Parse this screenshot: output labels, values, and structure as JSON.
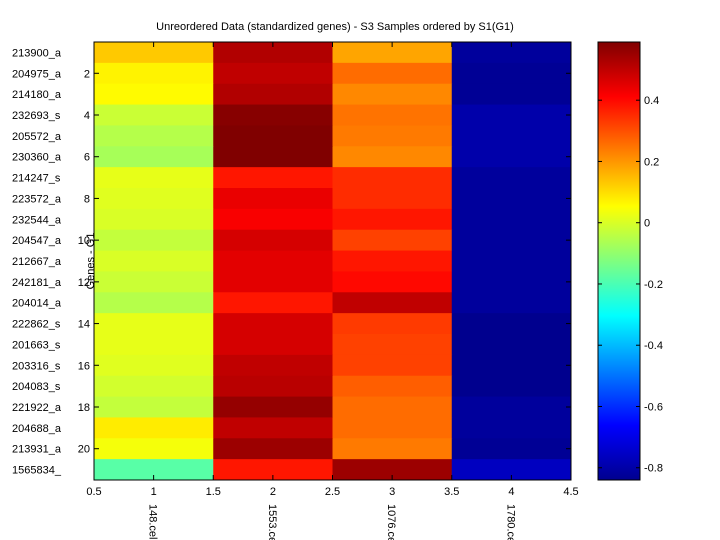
{
  "chart_data": {
    "type": "heatmap",
    "title": "Unreordered Data (standardized genes) - S3 Samples ordered by S1(G1)",
    "xlabel": "",
    "ylabel": "Genes - G1",
    "xlim": [
      0.5,
      4.5
    ],
    "x_ticks": [
      "0.5",
      "1",
      "1.5",
      "2",
      "2.5",
      "3",
      "3.5",
      "4",
      "4.5"
    ],
    "x_tick_values": [
      0.5,
      1,
      1.5,
      2,
      2.5,
      3,
      3.5,
      4,
      4.5
    ],
    "columns": [
      "148.cel",
      "1553.cel",
      "1076.cel",
      "1780.cel"
    ],
    "row_labels": [
      "213900_a",
      "204975_a",
      "214180_a",
      "232693_s",
      "205572_a",
      "230360_a",
      "214247_s",
      "223572_a",
      "232544_a",
      "204547_a",
      "212667_a",
      "242181_a",
      "204014_a",
      "222862_s",
      "201663_s",
      "203316_s",
      "204083_s",
      "221922_a",
      "204688_a",
      "213931_a",
      "1565834_"
    ],
    "y_ticks": [
      "2",
      "4",
      "6",
      "8",
      "10",
      "12",
      "14",
      "16",
      "18",
      "20"
    ],
    "y_tick_values": [
      2,
      4,
      6,
      8,
      10,
      12,
      14,
      16,
      18,
      20
    ],
    "values": [
      [
        0.13,
        0.52,
        0.18,
        -0.8
      ],
      [
        0.07,
        0.5,
        0.26,
        -0.81
      ],
      [
        0.06,
        0.52,
        0.22,
        -0.81
      ],
      [
        -0.02,
        0.58,
        0.25,
        -0.78
      ],
      [
        -0.05,
        0.63,
        0.24,
        -0.78
      ],
      [
        -0.07,
        0.64,
        0.22,
        -0.78
      ],
      [
        0.02,
        0.38,
        0.35,
        -0.8
      ],
      [
        0.01,
        0.44,
        0.35,
        -0.8
      ],
      [
        0.0,
        0.42,
        0.38,
        -0.8
      ],
      [
        -0.03,
        0.47,
        0.32,
        -0.8
      ],
      [
        0.0,
        0.45,
        0.38,
        -0.8
      ],
      [
        -0.02,
        0.45,
        0.4,
        -0.8
      ],
      [
        -0.05,
        0.38,
        0.5,
        -0.8
      ],
      [
        0.02,
        0.47,
        0.33,
        -0.82
      ],
      [
        0.02,
        0.47,
        0.32,
        -0.82
      ],
      [
        0.01,
        0.5,
        0.32,
        -0.82
      ],
      [
        -0.01,
        0.51,
        0.28,
        -0.82
      ],
      [
        -0.03,
        0.56,
        0.26,
        -0.8
      ],
      [
        0.08,
        0.5,
        0.26,
        -0.8
      ],
      [
        0.04,
        0.55,
        0.24,
        -0.81
      ],
      [
        -0.18,
        0.38,
        0.55,
        -0.75
      ]
    ],
    "colorbar": {
      "colormap": "jet",
      "range": [
        -0.84,
        0.59
      ],
      "ticks": [
        "-0.8",
        "-0.6",
        "-0.4",
        "-0.2",
        "0",
        "0.2",
        "0.4"
      ],
      "tick_values": [
        -0.8,
        -0.6,
        -0.4,
        -0.2,
        0,
        0.2,
        0.4
      ]
    },
    "grid": false,
    "legend": "colorbar-right"
  }
}
